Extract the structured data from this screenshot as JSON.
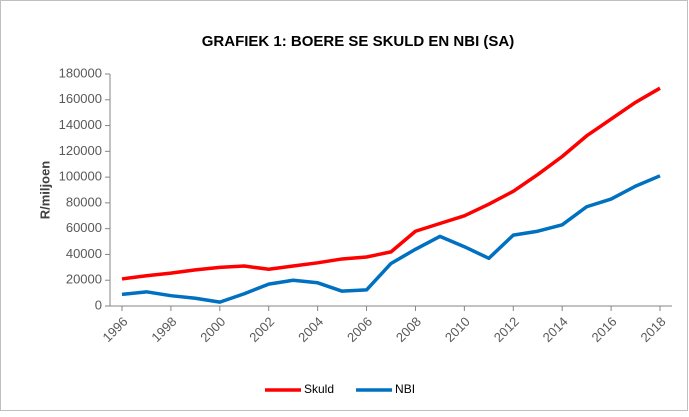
{
  "chart_data": {
    "type": "line",
    "title": "GRAFIEK 1: BOERE SE SKULD EN NBI (SA)",
    "y_label": "R/miljoen",
    "x": [
      1996,
      1997,
      1998,
      1999,
      2000,
      2001,
      2002,
      2003,
      2004,
      2005,
      2006,
      2007,
      2008,
      2009,
      2010,
      2011,
      2012,
      2013,
      2014,
      2015,
      2016,
      2017,
      2018
    ],
    "series": [
      {
        "name": "Skuld",
        "color": "#ff0000",
        "values": [
          21000,
          23500,
          25500,
          28000,
          30000,
          31000,
          28500,
          31000,
          33500,
          36500,
          38000,
          42000,
          58000,
          64000,
          70000,
          79000,
          89000,
          102000,
          116000,
          132000,
          145000,
          158000,
          169000
        ]
      },
      {
        "name": "NBI",
        "color": "#0070c0",
        "values": [
          9000,
          11000,
          8000,
          6000,
          3000,
          9500,
          17000,
          20000,
          18000,
          11500,
          12500,
          33000,
          44000,
          54000,
          46000,
          37000,
          55000,
          58000,
          63000,
          77000,
          83000,
          93000,
          101000
        ]
      }
    ],
    "xlim": [
      1996,
      2018
    ],
    "xticks": [
      1996,
      1998,
      2000,
      2002,
      2004,
      2006,
      2008,
      2010,
      2012,
      2014,
      2016,
      2018
    ],
    "ylim": [
      0,
      180000
    ],
    "yticks": [
      0,
      20000,
      40000,
      60000,
      80000,
      100000,
      120000,
      140000,
      160000,
      180000
    ],
    "grid": false,
    "legend": "bottom"
  }
}
